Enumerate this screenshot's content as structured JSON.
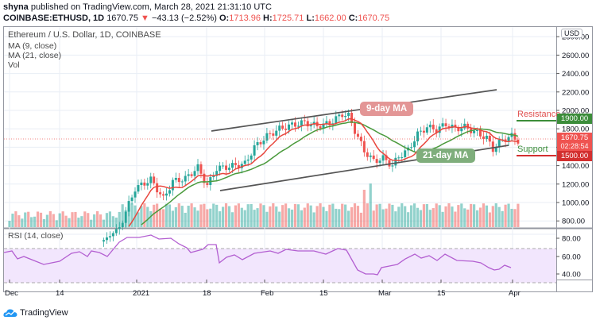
{
  "header": {
    "publisher": "shyna",
    "published_text": " published on TradingView.com, March 28, 2021 21:31:10 UTC",
    "symbol": "COINBASE:ETHUSD, 1D",
    "last": "1670.75",
    "change": "−43.13 (−2.52%)",
    "o_label": "O:",
    "o": "1713.96",
    "h_label": "H:",
    "h": "1725.71",
    "l_label": "L:",
    "l": "1662.00",
    "c_label": "C:",
    "c": "1670.75"
  },
  "legend": {
    "title": "Ethereum / U.S. Dollar, 1D, COINBASE",
    "ma9": "MA (9, close)",
    "ma21": "MA (21, close)",
    "vol": "Vol",
    "rsi": "RSI (14, close)"
  },
  "currency": "USD",
  "annotations": {
    "ma9_label": "9-day MA",
    "ma21_label": "21-day MA",
    "resistance_label": "Resistance",
    "support_label": "Support",
    "resistance_price": "1900.00",
    "support_price": "1500.00",
    "last_price": "1670.75",
    "countdown": "02:28:54"
  },
  "footer": {
    "brand": "TradingView"
  },
  "colors": {
    "up": "#26a69a",
    "down": "#ef5350",
    "ma9": "#e8463d",
    "ma21": "#4a9a3c",
    "rsi": "#b35fd1",
    "rsi_band": "#f2e6fd",
    "resistance_badge": "#3c8d3a",
    "support_badge": "#d32f2f",
    "channel": "#555555"
  },
  "chart_data": [
    {
      "type": "candlestick",
      "title": "Ethereum / U.S. Dollar, 1D, COINBASE",
      "xlabel": "",
      "ylabel": "USD",
      "x_ticks": [
        "Dec",
        "14",
        "2021",
        "18",
        "Feb",
        "15",
        "Mar",
        "15",
        "Apr"
      ],
      "y_ticks": [
        800,
        1000,
        1200,
        1400,
        1600,
        1800,
        2000,
        2200,
        2400,
        2600,
        2800
      ],
      "ylim": [
        700,
        2850
      ],
      "grid": true,
      "series": [
        {
          "name": "ETHUSD close (approx)",
          "x": [
            "Jan 1",
            "Jan 5",
            "Jan 10",
            "Jan 15",
            "Jan 20",
            "Jan 25",
            "Feb 1",
            "Feb 5",
            "Feb 10",
            "Feb 15",
            "Feb 19",
            "Feb 23",
            "Feb 28",
            "Mar 5",
            "Mar 10",
            "Mar 14",
            "Mar 18",
            "Mar 23",
            "Mar 28"
          ],
          "values": [
            730,
            1100,
            1250,
            1220,
            1380,
            1340,
            1370,
            1700,
            1780,
            1780,
            1960,
            1580,
            1420,
            1540,
            1870,
            1850,
            1820,
            1580,
            1670
          ]
        },
        {
          "name": "MA (9, close)",
          "note": "red line"
        },
        {
          "name": "MA (21, close)",
          "note": "green line"
        }
      ],
      "levels": {
        "resistance": 1900,
        "support": 1500,
        "last": 1670.75
      },
      "annotations": [
        "9-day MA",
        "21-day MA",
        "Resistance",
        "Support"
      ]
    },
    {
      "type": "line",
      "title": "RSI (14, close)",
      "y_ticks": [
        40,
        60,
        80
      ],
      "band": [
        30,
        70
      ],
      "x": [
        "Dec",
        "14",
        "2021",
        "18",
        "Feb",
        "15",
        "Mar",
        "15",
        "Apr"
      ],
      "values_approx": [
        58,
        52,
        45,
        60,
        88,
        55,
        62,
        65,
        66,
        70,
        40,
        38,
        60,
        57,
        50,
        45,
        48
      ]
    }
  ]
}
